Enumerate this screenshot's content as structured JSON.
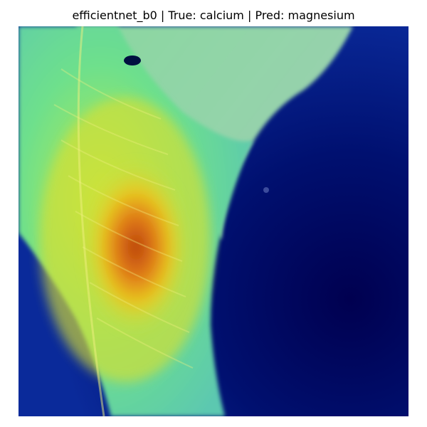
{
  "figure": {
    "title": "efficientnet_b0 | True: calcium | Pred: magnesium"
  },
  "image": {
    "subject": "grad-cam heatmap overlaid on leaf",
    "colors": {
      "background_dark": "#00004d",
      "background_mid": "#0a1a8c",
      "leaf_green": "#5fe08a",
      "leaf_cyan": "#6fd6b0",
      "hot_yellow": "#e6e020",
      "hot_orange": "#e07a18",
      "hot_red": "#c84a10"
    }
  }
}
